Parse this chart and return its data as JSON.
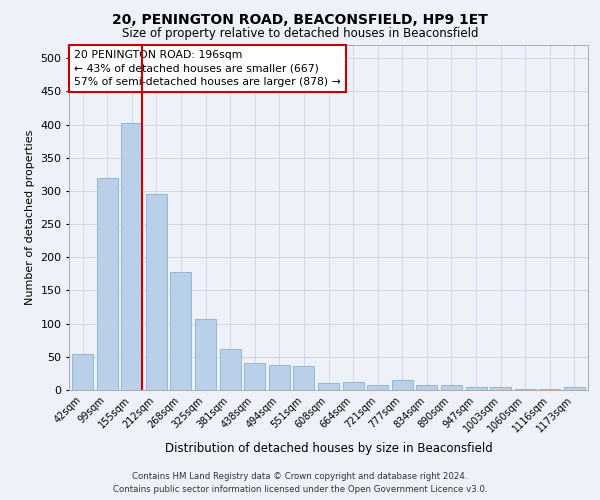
{
  "title": "20, PENINGTON ROAD, BEACONSFIELD, HP9 1ET",
  "subtitle": "Size of property relative to detached houses in Beaconsfield",
  "xlabel": "Distribution of detached houses by size in Beaconsfield",
  "ylabel": "Number of detached properties",
  "footer_line1": "Contains HM Land Registry data © Crown copyright and database right 2024.",
  "footer_line2": "Contains public sector information licensed under the Open Government Licence v3.0.",
  "bar_labels": [
    "42sqm",
    "99sqm",
    "155sqm",
    "212sqm",
    "268sqm",
    "325sqm",
    "381sqm",
    "438sqm",
    "494sqm",
    "551sqm",
    "608sqm",
    "664sqm",
    "721sqm",
    "777sqm",
    "834sqm",
    "890sqm",
    "947sqm",
    "1003sqm",
    "1060sqm",
    "1116sqm",
    "1173sqm"
  ],
  "bar_values": [
    55,
    320,
    403,
    295,
    178,
    107,
    62,
    41,
    37,
    36,
    11,
    12,
    8,
    15,
    7,
    8,
    4,
    4,
    1,
    1,
    4
  ],
  "bar_color": "#bad0e8",
  "bar_edge_color": "#90b8d8",
  "grid_color": "#ccd8ec",
  "background_color": "#eef2f8",
  "vline_color": "#cc0000",
  "annotation_text": "20 PENINGTON ROAD: 196sqm\n← 43% of detached houses are smaller (667)\n57% of semi-detached houses are larger (878) →",
  "annotation_box_color": "#ffffff",
  "annotation_box_edge_color": "#cc0000",
  "ylim": [
    0,
    520
  ],
  "yticks": [
    0,
    50,
    100,
    150,
    200,
    250,
    300,
    350,
    400,
    450,
    500
  ]
}
